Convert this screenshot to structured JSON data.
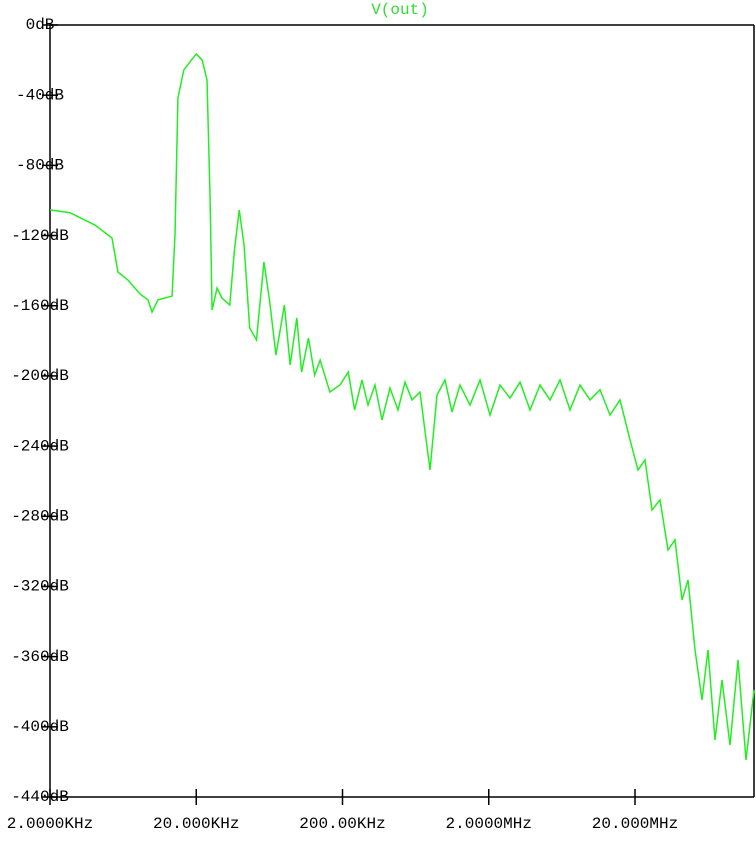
{
  "chart_data": {
    "type": "line",
    "title": "V(out)",
    "title_color": "#33dd33",
    "xscale": "log",
    "grid": false,
    "xlim": [
      2000,
      130200000
    ],
    "ylim": [
      -440,
      0
    ],
    "xticks": [
      {
        "value": 2000,
        "label": "2.0000KHz"
      },
      {
        "value": 20000,
        "label": "20.000KHz"
      },
      {
        "value": 200000,
        "label": "200.00KHz"
      },
      {
        "value": 2000000,
        "label": "2.0000MHz"
      },
      {
        "value": 20000000,
        "label": "20.000MHz"
      }
    ],
    "yticks": [
      {
        "value": 0,
        "label": "0dB"
      },
      {
        "value": -40,
        "label": "-40dB"
      },
      {
        "value": -80,
        "label": "-80dB"
      },
      {
        "value": -120,
        "label": "-120dB"
      },
      {
        "value": -160,
        "label": "-160dB"
      },
      {
        "value": -200,
        "label": "-200dB"
      },
      {
        "value": -240,
        "label": "-240dB"
      },
      {
        "value": -280,
        "label": "-280dB"
      },
      {
        "value": -320,
        "label": "-320dB"
      },
      {
        "value": -360,
        "label": "-360dB"
      },
      {
        "value": -400,
        "label": "-400dB"
      },
      {
        "value": -440,
        "label": "-440dB"
      }
    ],
    "x": [
      2000,
      2738,
      4061,
      5309,
      5830,
      6810,
      8250,
      9360,
      9970,
      10940,
      13660,
      14310,
      14990,
      16450,
      18080,
      20000,
      21930,
      23690,
      24880,
      25660,
      27770,
      29960,
      33900,
      36500,
      39360,
      42450,
      46380,
      51630,
      58050,
      63370,
      70170,
      80100,
      87700,
      97400,
      105000,
      117000,
      129000,
      140600,
      164000,
      192000,
      219000,
      242000,
      271800,
      298900,
      333600,
      372500,
      422400,
      479100,
      535300,
      597500,
      677700,
      793100,
      885700,
      1004400,
      1121600,
      1271800,
      1488900,
      1743000,
      2040000,
      2388000,
      2796000,
      3272000,
      3830000,
      4482000,
      5248000,
      6142000,
      7188000,
      8414000,
      9850000,
      11530000,
      13490000,
      15790000,
      18490000,
      20970000,
      23410000,
      26140000,
      29650000,
      33620000,
      37540000,
      41930000,
      46070000,
      51460000,
      57440000,
      63110000,
      70470000,
      78700000,
      89250000,
      101200000,
      114800000,
      130200000
    ],
    "series": [
      {
        "name": "V(out)",
        "color": "#22ee22",
        "values": [
          -105.4,
          -107,
          -114,
          -121.4,
          -140.8,
          -145.3,
          -153.3,
          -156.7,
          -163.6,
          -156.7,
          -154.5,
          -119.7,
          -41.6,
          -25.6,
          -21.1,
          -16.5,
          -19.9,
          -31.3,
          -99.7,
          -162.4,
          -149.9,
          -155.6,
          -159.6,
          -128.2,
          -105.4,
          -125.4,
          -172.7,
          -179.5,
          -135.1,
          -156.7,
          -188.1,
          -159.6,
          -193.8,
          -167,
          -197.8,
          -178.4,
          -199.5,
          -191,
          -209.2,
          -205.2,
          -197.8,
          -219.4,
          -202.3,
          -216.6,
          -205.2,
          -225.1,
          -206.9,
          -219.4,
          -203.5,
          -213.7,
          -209.2,
          -253.6,
          -210.9,
          -202.3,
          -220.6,
          -205.2,
          -216.6,
          -202.3,
          -222.3,
          -205.2,
          -212.6,
          -203.5,
          -219.4,
          -205.2,
          -213.7,
          -202.3,
          -219.4,
          -205.2,
          -213.7,
          -207.9,
          -222.3,
          -213.7,
          -236.5,
          -253.6,
          -247.9,
          -276.4,
          -270.7,
          -299.2,
          -293.5,
          -327.7,
          -316.3,
          -356.2,
          -384.7,
          -356.2,
          -407.5,
          -373.3,
          -410.4,
          -361.9,
          -418.9,
          -379.0
        ]
      }
    ]
  }
}
